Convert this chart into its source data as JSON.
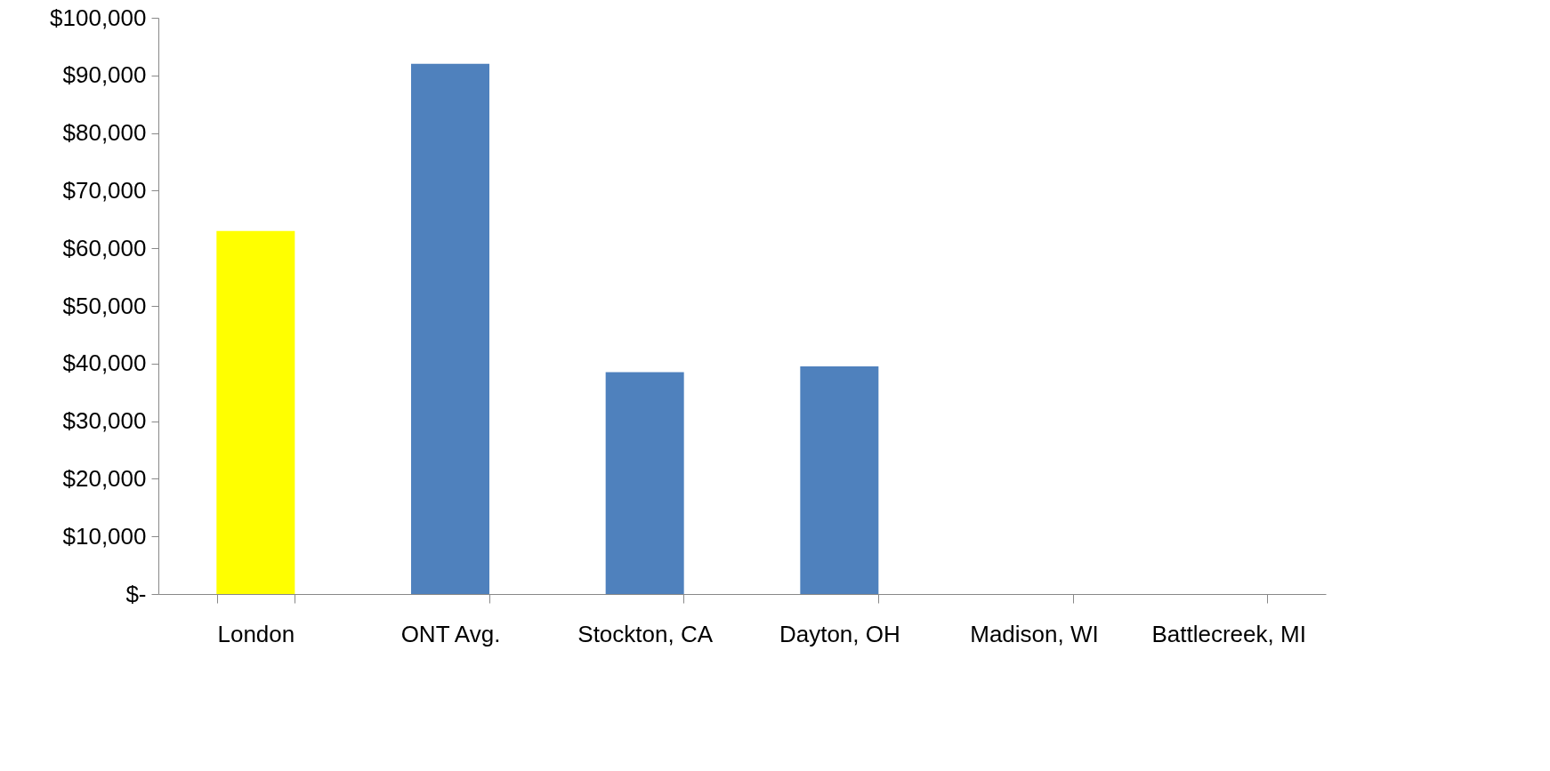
{
  "chart_data": {
    "type": "bar",
    "categories": [
      "London",
      "ONT Avg.",
      "Stockton, CA",
      "Dayton, OH",
      "Madison, WI",
      "Battlecreek, MI"
    ],
    "values": [
      63000,
      92000,
      38500,
      39500,
      0,
      0
    ],
    "colors": [
      "#ffff00",
      "#4f81bd",
      "#4f81bd",
      "#4f81bd",
      "#4f81bd",
      "#4f81bd"
    ],
    "ylim": [
      0,
      100000
    ],
    "yticks": [
      {
        "value": 0,
        "label": "$-"
      },
      {
        "value": 10000,
        "label": "$10,000"
      },
      {
        "value": 20000,
        "label": "$20,000"
      },
      {
        "value": 30000,
        "label": "$30,000"
      },
      {
        "value": 40000,
        "label": "$40,000"
      },
      {
        "value": 50000,
        "label": "$50,000"
      },
      {
        "value": 60000,
        "label": "$60,000"
      },
      {
        "value": 70000,
        "label": "$70,000"
      },
      {
        "value": 80000,
        "label": "$80,000"
      },
      {
        "value": 90000,
        "label": "$90,000"
      },
      {
        "value": 100000,
        "label": "$100,000"
      }
    ],
    "grid": false,
    "legend": false
  }
}
